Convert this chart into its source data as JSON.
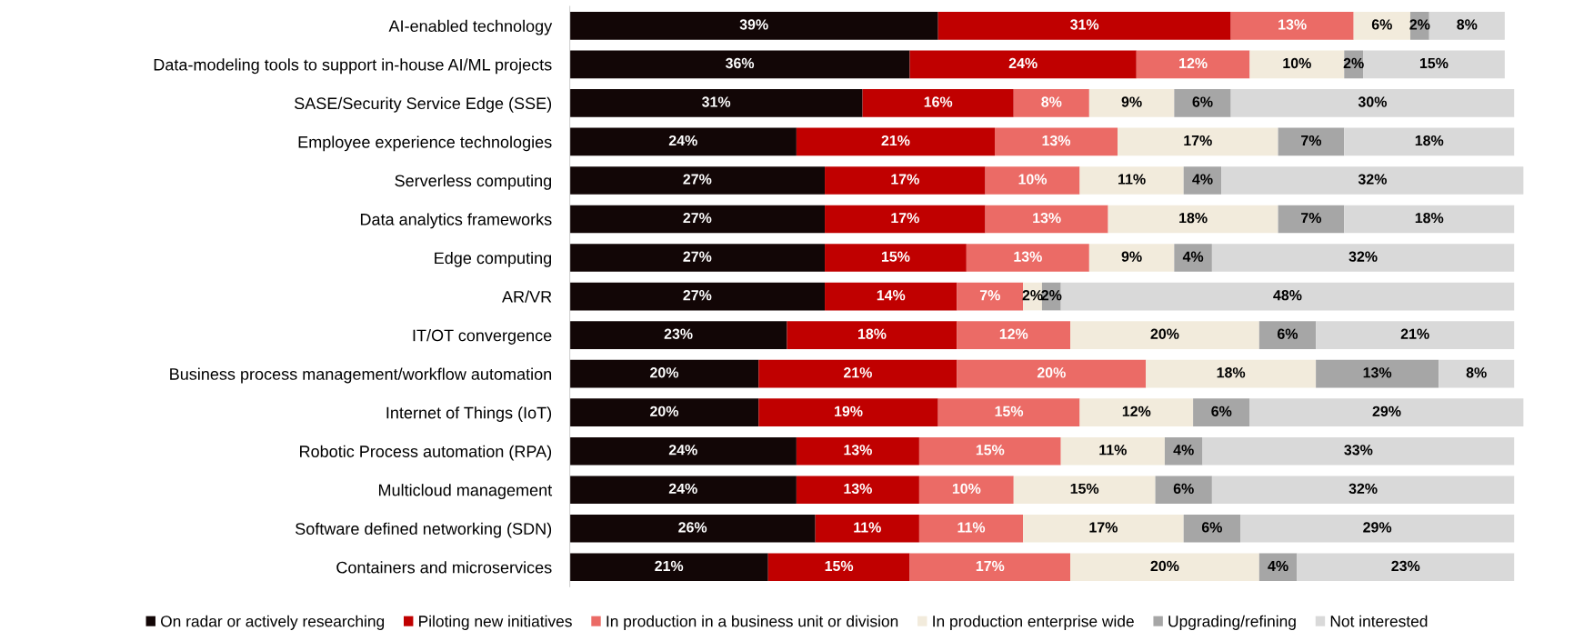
{
  "chart_data": {
    "type": "bar",
    "orientation": "horizontal",
    "stacked": true,
    "legend": "bottom",
    "grid": false,
    "categories": [
      "AI-enabled technology",
      "Data-modeling tools to support in-house AI/ML projects",
      "SASE/Security Service Edge (SSE)",
      "Employee experience technologies",
      "Serverless computing",
      "Data analytics frameworks",
      "Edge computing",
      "AR/VR",
      "IT/OT convergence",
      "Business process management/workflow automation",
      "Internet of Things (IoT)",
      "Robotic Process automation (RPA)",
      "Multicloud management",
      "Software defined networking (SDN)",
      "Containers and microservices"
    ],
    "series": [
      {
        "name": "On radar or actively researching",
        "color": "#120606",
        "values": [
          39,
          36,
          31,
          24,
          27,
          27,
          27,
          27,
          23,
          20,
          20,
          24,
          24,
          26,
          21
        ],
        "value_labels": [
          "39%",
          "36%",
          "31%",
          "24%",
          "27%",
          "27%",
          "27%",
          "27%",
          "23%",
          "20%",
          "20%",
          "24%",
          "24%",
          "26%",
          "21%"
        ]
      },
      {
        "name": "Piloting new initiatives",
        "color": "#c00000",
        "values": [
          31,
          24,
          16,
          21,
          17,
          17,
          15,
          14,
          18,
          21,
          19,
          13,
          13,
          11,
          15
        ],
        "value_labels": [
          "31%",
          "24%",
          "16%",
          "21%",
          "17%",
          "17%",
          "15%",
          "14%",
          "18%",
          "21%",
          "19%",
          "13%",
          "13%",
          "11%",
          "15%"
        ]
      },
      {
        "name": "In production in a business unit or division",
        "color": "#eb6b66",
        "values": [
          13,
          12,
          8,
          13,
          10,
          13,
          13,
          7,
          12,
          20,
          15,
          15,
          10,
          11,
          17
        ],
        "value_labels": [
          "13%",
          "12%",
          "8%",
          "13%",
          "10%",
          "13%",
          "13%",
          "7%",
          "12%",
          "20%",
          "15%",
          "15%",
          "10%",
          "11%",
          "17%"
        ]
      },
      {
        "name": "In production enterprise wide",
        "color": "#f2ebdc",
        "values": [
          6,
          10,
          9,
          17,
          11,
          18,
          9,
          2,
          20,
          18,
          12,
          11,
          15,
          17,
          20
        ],
        "value_labels": [
          "6%",
          "10%",
          "9%",
          "17%",
          "11%",
          "18%",
          "9%",
          "2%",
          "20%",
          "18%",
          "12%",
          "11%",
          "15%",
          "17%",
          "20%"
        ]
      },
      {
        "name": "Upgrading/refining",
        "color": "#a6a6a6",
        "values": [
          2,
          2,
          6,
          7,
          4,
          7,
          4,
          2,
          6,
          13,
          6,
          4,
          6,
          6,
          4
        ],
        "value_labels": [
          "2%",
          "2%",
          "6%",
          "7%",
          "4%",
          "7%",
          "4%",
          "2%",
          "6%",
          "13%",
          "6%",
          "4%",
          "6%",
          "6%",
          "4%"
        ]
      },
      {
        "name": "Not interested",
        "color": "#d9d9d9",
        "values": [
          8,
          15,
          30,
          18,
          32,
          18,
          32,
          48,
          21,
          8,
          29,
          33,
          32,
          29,
          23
        ],
        "value_labels": [
          "8%",
          "15%",
          "30%",
          "18%",
          "32%",
          "18%",
          "32%",
          "48%",
          "21%",
          "8%",
          "29%",
          "33%",
          "32%",
          "29%",
          "23%"
        ]
      }
    ]
  }
}
